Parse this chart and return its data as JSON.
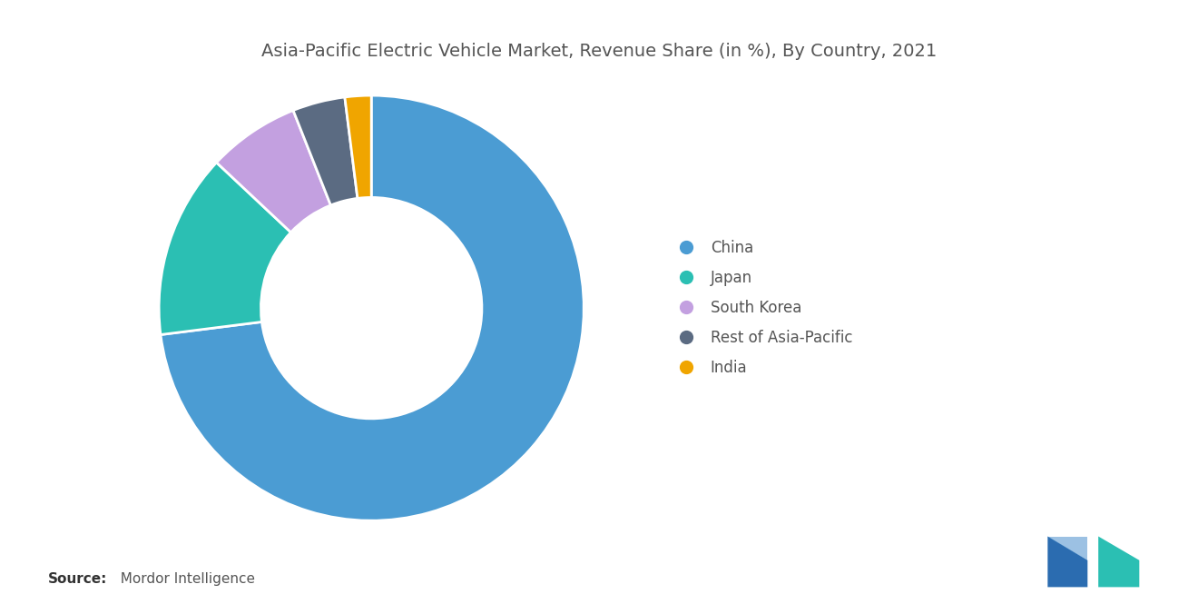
{
  "title": "Asia-Pacific Electric Vehicle Market, Revenue Share (in %), By Country, 2021",
  "labels": [
    "China",
    "Japan",
    "South Korea",
    "Rest of Asia-Pacific",
    "India"
  ],
  "values": [
    73,
    14,
    7,
    4,
    2
  ],
  "colors": [
    "#4B9CD3",
    "#2BBFB3",
    "#C3A0E0",
    "#5B6B82",
    "#F0A500"
  ],
  "background_color": "#FFFFFF",
  "source_bold": "Source:",
  "source_rest": "  Mordor Intelligence",
  "title_fontsize": 14,
  "legend_fontsize": 12,
  "source_fontsize": 11,
  "wedge_linewidth": 2.0,
  "donut_ratio": 0.48
}
